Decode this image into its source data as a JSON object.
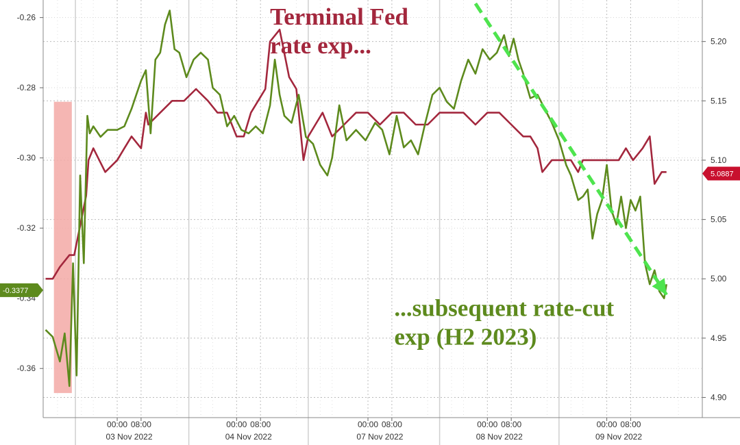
{
  "chart_data": {
    "type": "line",
    "grid": true,
    "left_axis": {
      "ylim": [
        -0.374,
        -0.255
      ],
      "ticks": [
        -0.26,
        -0.28,
        -0.3,
        -0.32,
        -0.36
      ],
      "tick_labels": [
        "-0.26",
        "-0.28",
        "-0.30",
        "-0.32",
        "-0.36"
      ],
      "clipped_tick_label": "-0.34"
    },
    "right_axis": {
      "ylim": [
        4.883,
        5.235
      ],
      "ticks": [
        5.2,
        5.15,
        5.1,
        5.05,
        5.0,
        4.95,
        4.9
      ],
      "tick_labels": [
        "5.20",
        "5.15",
        "5.10",
        "5.05",
        "5.00",
        "4.95",
        "4.90"
      ]
    },
    "x_labels": [
      {
        "label": "00:00",
        "x": 3.0
      },
      {
        "label": "08:00",
        "x": 4.0
      },
      {
        "label": "00:00",
        "x": 8.0
      },
      {
        "label": "08:00",
        "x": 9.0
      },
      {
        "label": "00:00",
        "x": 13.5
      },
      {
        "label": "08:00",
        "x": 14.5
      },
      {
        "label": "00:00",
        "x": 18.5
      },
      {
        "label": "08:00",
        "x": 19.5
      },
      {
        "label": "00:00",
        "x": 23.5
      },
      {
        "label": "08:00",
        "x": 24.5
      }
    ],
    "date_labels": [
      {
        "label": "03 Nov 2022",
        "x": 3.5
      },
      {
        "label": "04 Nov 2022",
        "x": 8.5
      },
      {
        "label": "07 Nov 2022",
        "x": 14.0
      },
      {
        "label": "08 Nov 2022",
        "x": 19.0
      },
      {
        "label": "09 Nov 2022",
        "x": 24.0
      }
    ],
    "series": [
      {
        "axis": "right",
        "color": "#a3273d",
        "points": [
          [
            0,
            5.0
          ],
          [
            0.3,
            5.0
          ],
          [
            0.6,
            5.01
          ],
          [
            1.0,
            5.02
          ],
          [
            1.2,
            5.02
          ],
          [
            1.5,
            5.05
          ],
          [
            1.7,
            5.07
          ],
          [
            1.8,
            5.1
          ],
          [
            2.0,
            5.11
          ],
          [
            2.5,
            5.09
          ],
          [
            3.0,
            5.1
          ],
          [
            3.3,
            5.11
          ],
          [
            3.6,
            5.12
          ],
          [
            4.0,
            5.11
          ],
          [
            4.2,
            5.14
          ],
          [
            4.3,
            5.13
          ],
          [
            4.8,
            5.14
          ],
          [
            5.3,
            5.15
          ],
          [
            5.8,
            5.15
          ],
          [
            6.3,
            5.16
          ],
          [
            6.8,
            5.15
          ],
          [
            7.2,
            5.14
          ],
          [
            7.6,
            5.14
          ],
          [
            8.0,
            5.12
          ],
          [
            8.3,
            5.12
          ],
          [
            8.6,
            5.14
          ],
          [
            8.9,
            5.15
          ],
          [
            9.2,
            5.16
          ],
          [
            9.4,
            5.2
          ],
          [
            9.8,
            5.21
          ],
          [
            10.2,
            5.17
          ],
          [
            10.5,
            5.16
          ],
          [
            10.8,
            5.1
          ],
          [
            11.0,
            5.12
          ],
          [
            11.3,
            5.13
          ],
          [
            11.6,
            5.14
          ],
          [
            12.0,
            5.12
          ],
          [
            12.5,
            5.13
          ],
          [
            13.0,
            5.14
          ],
          [
            13.5,
            5.14
          ],
          [
            14.0,
            5.13
          ],
          [
            14.5,
            5.14
          ],
          [
            15.0,
            5.14
          ],
          [
            15.5,
            5.13
          ],
          [
            16.0,
            5.13
          ],
          [
            16.5,
            5.14
          ],
          [
            17.0,
            5.14
          ],
          [
            17.5,
            5.14
          ],
          [
            18.0,
            5.13
          ],
          [
            18.5,
            5.14
          ],
          [
            19.0,
            5.14
          ],
          [
            19.5,
            5.13
          ],
          [
            20.0,
            5.12
          ],
          [
            20.3,
            5.12
          ],
          [
            20.6,
            5.11
          ],
          [
            20.8,
            5.09
          ],
          [
            21.2,
            5.1
          ],
          [
            21.6,
            5.1
          ],
          [
            22.0,
            5.1
          ],
          [
            22.3,
            5.09
          ],
          [
            22.5,
            5.1
          ],
          [
            23.0,
            5.1
          ],
          [
            23.5,
            5.1
          ],
          [
            24.0,
            5.1
          ],
          [
            24.3,
            5.11
          ],
          [
            24.6,
            5.1
          ],
          [
            25.0,
            5.11
          ],
          [
            25.3,
            5.12
          ],
          [
            25.5,
            5.08
          ],
          [
            25.8,
            5.09
          ],
          [
            26.0,
            5.09
          ]
        ]
      },
      {
        "axis": "left",
        "color": "#5d8a1d",
        "points": [
          [
            0,
            -0.349
          ],
          [
            0.3,
            -0.351
          ],
          [
            0.6,
            -0.358
          ],
          [
            0.8,
            -0.35
          ],
          [
            1.0,
            -0.365
          ],
          [
            1.15,
            -0.33
          ],
          [
            1.3,
            -0.362
          ],
          [
            1.45,
            -0.305
          ],
          [
            1.6,
            -0.33
          ],
          [
            1.75,
            -0.288
          ],
          [
            1.85,
            -0.293
          ],
          [
            2.0,
            -0.291
          ],
          [
            2.3,
            -0.294
          ],
          [
            2.6,
            -0.292
          ],
          [
            3.0,
            -0.292
          ],
          [
            3.3,
            -0.291
          ],
          [
            3.6,
            -0.286
          ],
          [
            3.8,
            -0.282
          ],
          [
            4.0,
            -0.278
          ],
          [
            4.2,
            -0.275
          ],
          [
            4.4,
            -0.293
          ],
          [
            4.6,
            -0.272
          ],
          [
            4.8,
            -0.27
          ],
          [
            5.0,
            -0.262
          ],
          [
            5.2,
            -0.258
          ],
          [
            5.4,
            -0.269
          ],
          [
            5.6,
            -0.27
          ],
          [
            5.9,
            -0.277
          ],
          [
            6.2,
            -0.272
          ],
          [
            6.5,
            -0.27
          ],
          [
            6.8,
            -0.272
          ],
          [
            7.0,
            -0.28
          ],
          [
            7.3,
            -0.282
          ],
          [
            7.6,
            -0.291
          ],
          [
            7.9,
            -0.288
          ],
          [
            8.2,
            -0.292
          ],
          [
            8.5,
            -0.293
          ],
          [
            8.8,
            -0.291
          ],
          [
            9.1,
            -0.293
          ],
          [
            9.4,
            -0.285
          ],
          [
            9.6,
            -0.272
          ],
          [
            9.8,
            -0.282
          ],
          [
            10.0,
            -0.288
          ],
          [
            10.3,
            -0.29
          ],
          [
            10.6,
            -0.282
          ],
          [
            10.9,
            -0.294
          ],
          [
            11.2,
            -0.296
          ],
          [
            11.5,
            -0.302
          ],
          [
            11.8,
            -0.305
          ],
          [
            12.0,
            -0.3
          ],
          [
            12.3,
            -0.285
          ],
          [
            12.6,
            -0.295
          ],
          [
            13.0,
            -0.292
          ],
          [
            13.4,
            -0.295
          ],
          [
            13.8,
            -0.29
          ],
          [
            14.1,
            -0.292
          ],
          [
            14.4,
            -0.299
          ],
          [
            14.7,
            -0.288
          ],
          [
            15.0,
            -0.297
          ],
          [
            15.3,
            -0.295
          ],
          [
            15.6,
            -0.299
          ],
          [
            15.9,
            -0.29
          ],
          [
            16.2,
            -0.282
          ],
          [
            16.5,
            -0.28
          ],
          [
            16.8,
            -0.284
          ],
          [
            17.1,
            -0.286
          ],
          [
            17.4,
            -0.278
          ],
          [
            17.7,
            -0.272
          ],
          [
            18.0,
            -0.276
          ],
          [
            18.3,
            -0.269
          ],
          [
            18.6,
            -0.272
          ],
          [
            18.9,
            -0.27
          ],
          [
            19.2,
            -0.265
          ],
          [
            19.4,
            -0.271
          ],
          [
            19.6,
            -0.266
          ],
          [
            19.8,
            -0.272
          ],
          [
            20.0,
            -0.276
          ],
          [
            20.3,
            -0.283
          ],
          [
            20.6,
            -0.282
          ],
          [
            20.9,
            -0.286
          ],
          [
            21.2,
            -0.29
          ],
          [
            21.5,
            -0.295
          ],
          [
            21.8,
            -0.302
          ],
          [
            22.0,
            -0.305
          ],
          [
            22.3,
            -0.312
          ],
          [
            22.5,
            -0.311
          ],
          [
            22.7,
            -0.309
          ],
          [
            22.9,
            -0.323
          ],
          [
            23.1,
            -0.316
          ],
          [
            23.3,
            -0.312
          ],
          [
            23.5,
            -0.302
          ],
          [
            23.7,
            -0.315
          ],
          [
            23.9,
            -0.319
          ],
          [
            24.1,
            -0.311
          ],
          [
            24.3,
            -0.32
          ],
          [
            24.5,
            -0.312
          ],
          [
            24.7,
            -0.315
          ],
          [
            24.9,
            -0.311
          ],
          [
            25.1,
            -0.33
          ],
          [
            25.3,
            -0.336
          ],
          [
            25.5,
            -0.332
          ],
          [
            25.7,
            -0.338
          ],
          [
            25.9,
            -0.34
          ],
          [
            26.0,
            -0.336
          ]
        ]
      }
    ],
    "last_value_tags": [
      {
        "axis": "left",
        "value": -0.3377,
        "label": "-0.3377",
        "color": "#5d8a1d"
      },
      {
        "axis": "right",
        "value": 5.0887,
        "label": "5.0887",
        "color": "#c8102e"
      }
    ],
    "trend_arrow": {
      "axis": "left",
      "color": "#4ee44e",
      "from": [
        18.0,
        -0.256
      ],
      "to": [
        26.0,
        -0.339
      ]
    },
    "highlight_band": {
      "x": [
        0.35,
        1.1
      ],
      "axis": "left",
      "y": [
        -0.367,
        -0.284
      ],
      "color": "#f3a9a6"
    },
    "annotations": [
      {
        "lines": [
          "Terminal Fed",
          "rate exp..."
        ],
        "color": "#a3273d",
        "anchor": [
          9.4,
          -0.262
        ]
      },
      {
        "lines": [
          "...subsequent rate-cut",
          "exp (H2 2023)"
        ],
        "color": "#5d8a1d",
        "anchor": [
          14.6,
          -0.345
        ]
      }
    ],
    "x_domain": [
      -0.1,
      27.5
    ]
  }
}
